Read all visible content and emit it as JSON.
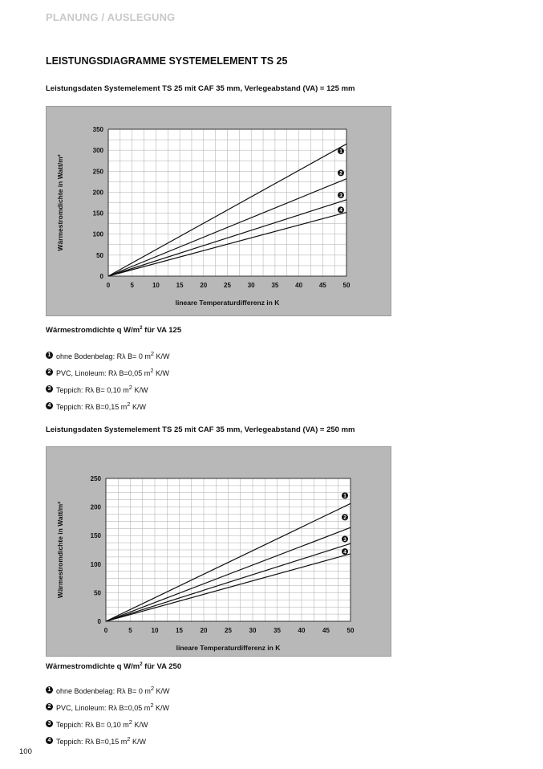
{
  "header": {
    "section": "PLANUNG / AUSLEGUNG",
    "title": "LEISTUNGSDIAGRAMME SYSTEMELEMENT TS 25",
    "page_number": "100"
  },
  "legend_items": [
    {
      "number": "1",
      "text": "ohne Bodenbelag: Rλ B= 0 m² K/W"
    },
    {
      "number": "2",
      "text": "PVC, Linoleum: Rλ B=0,05 m² K/W"
    },
    {
      "number": "3",
      "text": "Teppich: Rλ B= 0,10 m² K/W"
    },
    {
      "number": "4",
      "text": "Teppich: Rλ B=0,15 m² K/W"
    }
  ],
  "chart_data": [
    {
      "type": "line",
      "subtitle": "Leistungsdaten Systemelement TS 25 mit CAF 35 mm, Verlegeabstand (VA) = 125 mm",
      "caption": "Wärmestromdichte q W/m² für VA 125",
      "xlabel": "lineare Temperaturdifferenz in K",
      "ylabel": "Wärmestromdichte in Watt/m²",
      "xlim": [
        0,
        50
      ],
      "ylim": [
        0,
        350
      ],
      "xticks": [
        0,
        5,
        10,
        15,
        20,
        25,
        30,
        35,
        40,
        45,
        50
      ],
      "yticks": [
        0,
        50,
        100,
        150,
        200,
        250,
        300,
        350
      ],
      "x_minor_step": 2.5,
      "y_minor_step": 25,
      "grid": true,
      "series": [
        {
          "marker": "1",
          "x": [
            0,
            50
          ],
          "values": [
            0,
            315
          ],
          "label_y": 298
        },
        {
          "marker": "2",
          "x": [
            0,
            50
          ],
          "values": [
            0,
            232
          ],
          "label_y": 246
        },
        {
          "marker": "3",
          "x": [
            0,
            50
          ],
          "values": [
            0,
            182
          ],
          "label_y": 193
        },
        {
          "marker": "4",
          "x": [
            0,
            50
          ],
          "values": [
            0,
            152
          ],
          "label_y": 158
        }
      ]
    },
    {
      "type": "line",
      "subtitle": "Leistungsdaten Systemelement TS 25 mit CAF 35 mm, Verlegeabstand (VA) = 250 mm",
      "caption": "Wärmestromdichte q W/m² für VA 250",
      "xlabel": "lineare Temperaturdifferenz in K",
      "ylabel": "Wärmestromdichte in Watt/m²",
      "xlim": [
        0,
        50
      ],
      "ylim": [
        0,
        250
      ],
      "xticks": [
        0,
        5,
        10,
        15,
        20,
        25,
        30,
        35,
        40,
        45,
        50
      ],
      "yticks": [
        0,
        50,
        100,
        150,
        200,
        250
      ],
      "x_minor_step": 2.5,
      "y_minor_step": 12.5,
      "grid": true,
      "series": [
        {
          "marker": "1",
          "x": [
            0,
            50
          ],
          "values": [
            0,
            206
          ],
          "label_y": 220
        },
        {
          "marker": "2",
          "x": [
            0,
            50
          ],
          "values": [
            0,
            164
          ],
          "label_y": 182
        },
        {
          "marker": "3",
          "x": [
            0,
            50
          ],
          "values": [
            0,
            136
          ],
          "label_y": 144
        },
        {
          "marker": "4",
          "x": [
            0,
            50
          ],
          "values": [
            0,
            118
          ],
          "label_y": 122
        }
      ]
    }
  ]
}
